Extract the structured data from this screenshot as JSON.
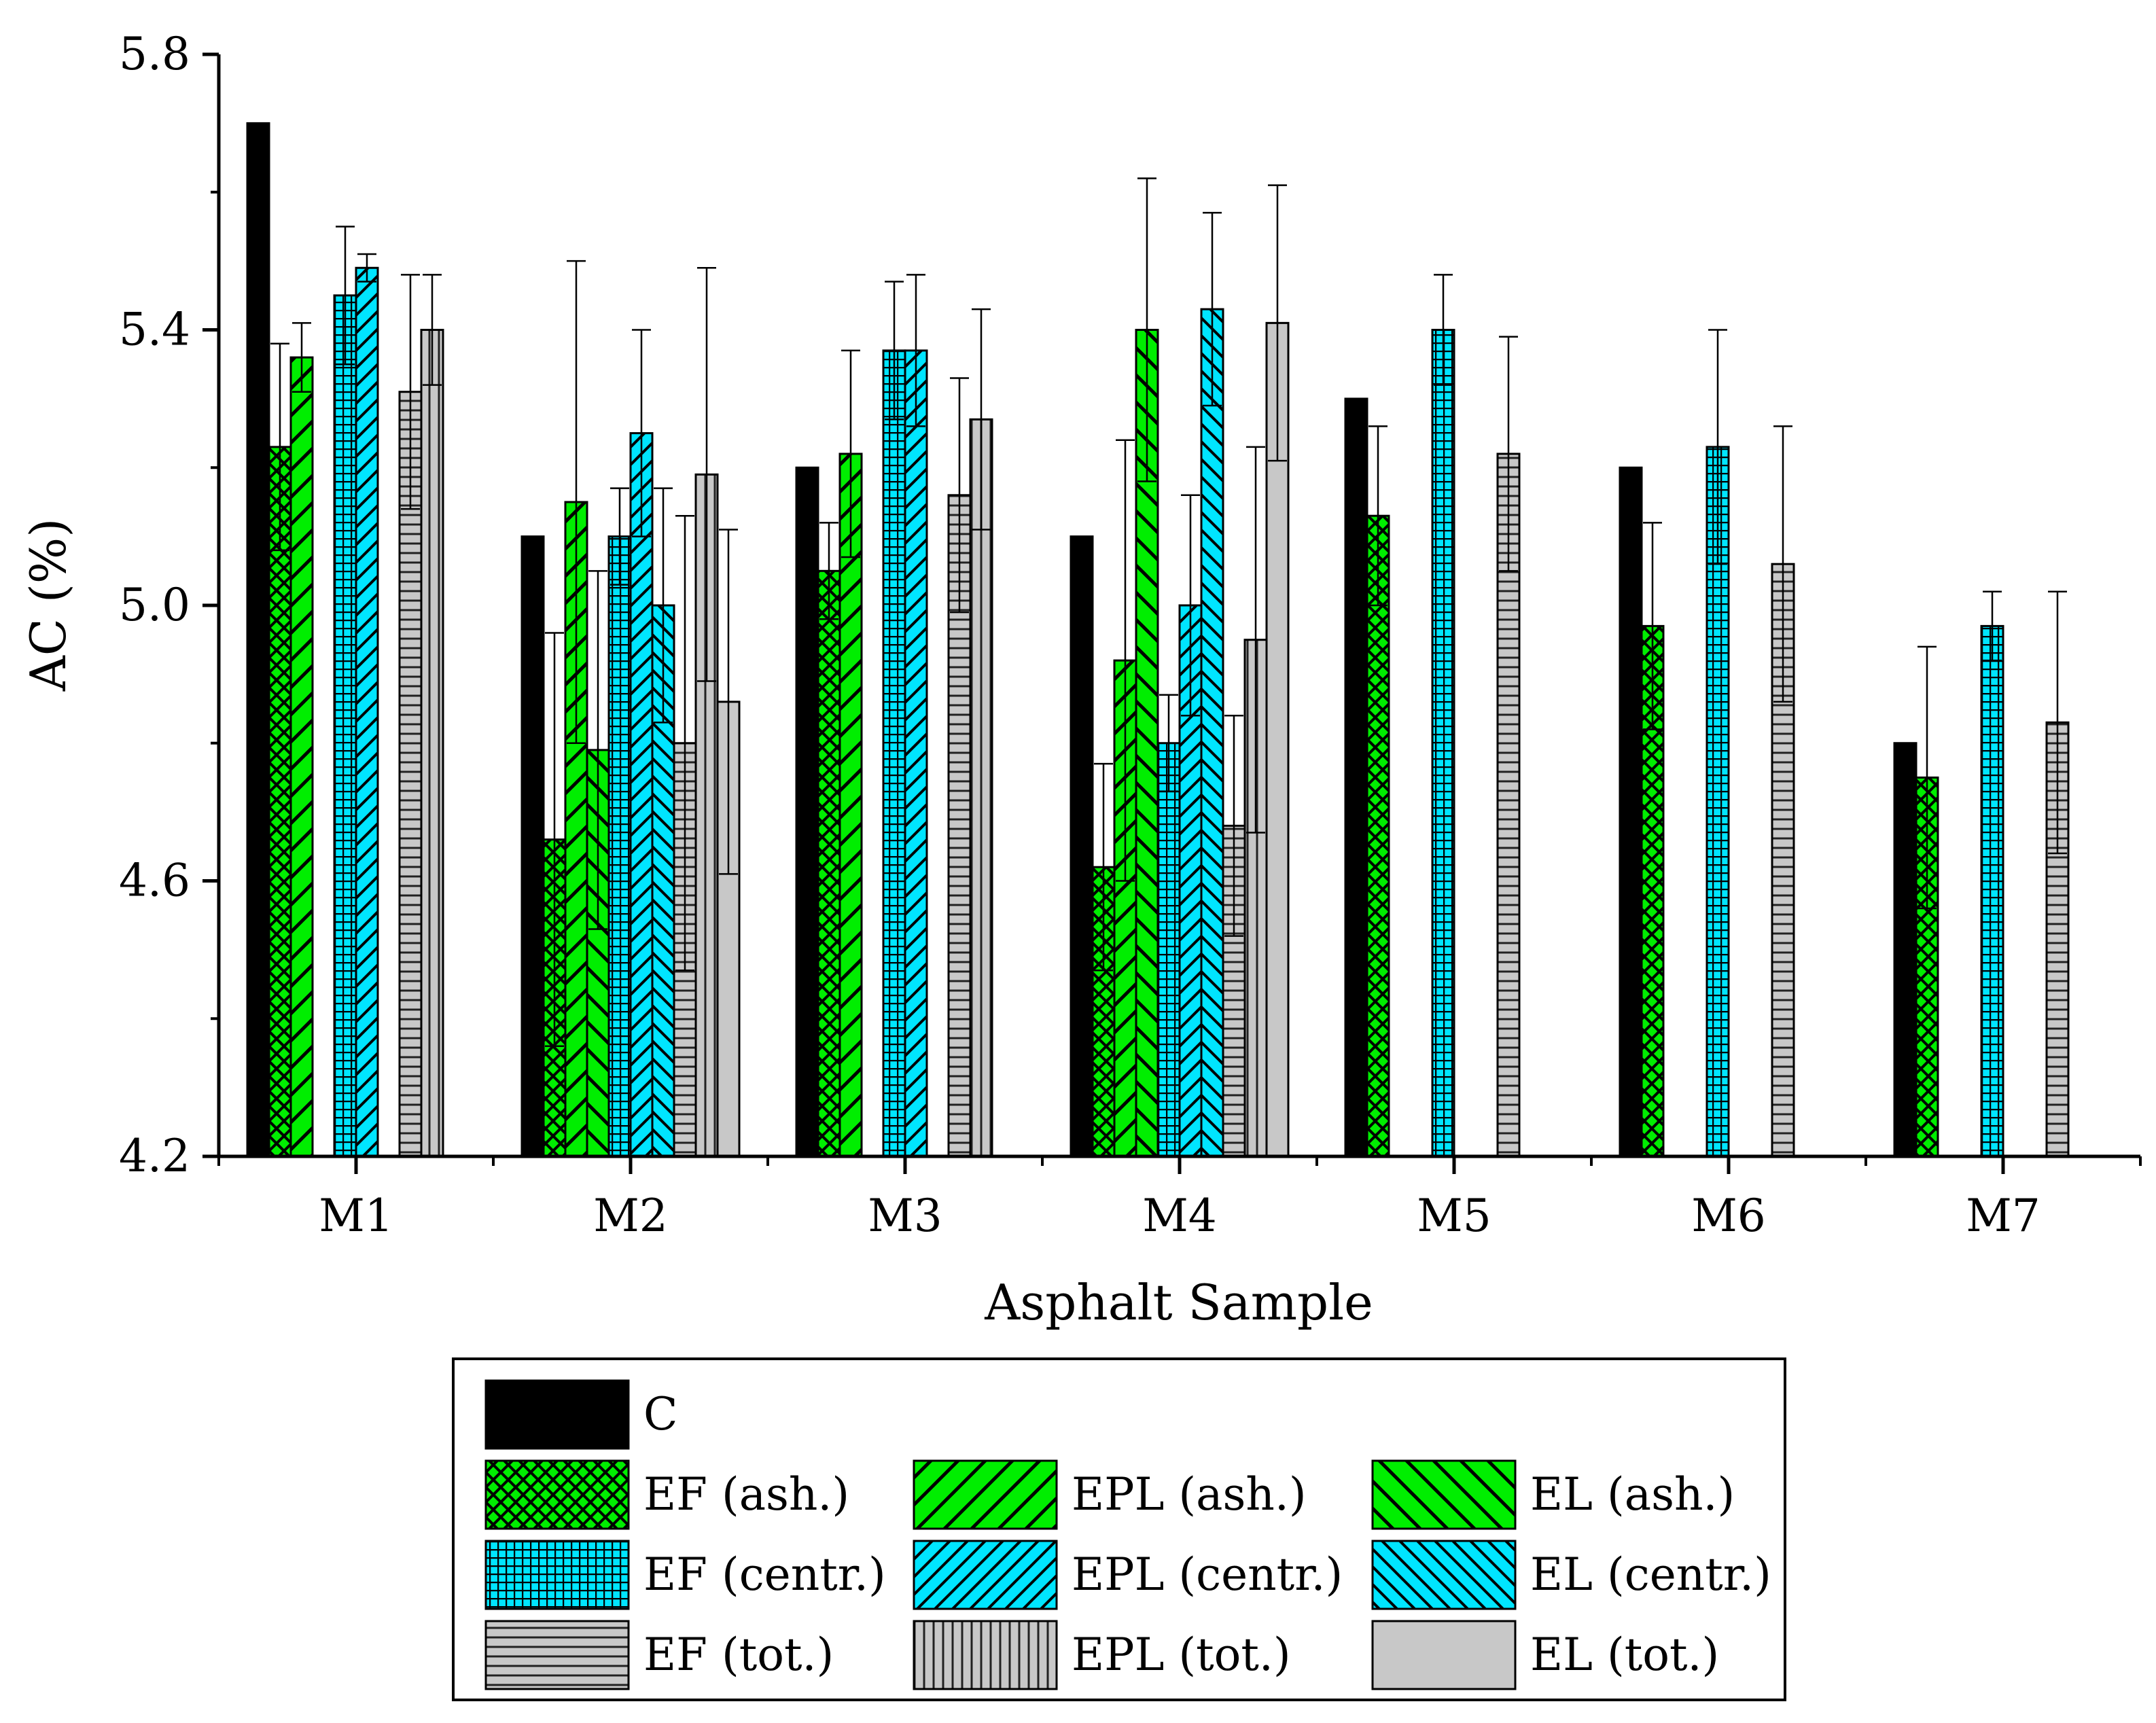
{
  "chart_data": {
    "type": "bar",
    "title": "",
    "xlabel": "Asphalt Sample",
    "ylabel": "AC (%)",
    "ylim": [
      4.2,
      5.8
    ],
    "yticks": [
      "4.2",
      "4.6",
      "5.0",
      "5.4",
      "5.8"
    ],
    "categories": [
      "M1",
      "M2",
      "M3",
      "M4",
      "M5",
      "M6",
      "M7"
    ],
    "legend_position": "bottom",
    "series": [
      {
        "name": "C",
        "pattern": "solid-black",
        "values": [
          5.7,
          5.1,
          5.2,
          5.1,
          5.3,
          5.2,
          4.8
        ],
        "errors": [
          null,
          null,
          null,
          null,
          null,
          null,
          null
        ]
      },
      {
        "name": "EF (ash.)",
        "pattern": "green-crosshatch",
        "values": [
          5.23,
          4.66,
          5.05,
          4.62,
          5.13,
          4.97,
          4.75
        ],
        "errors": [
          0.15,
          0.3,
          0.07,
          0.15,
          0.13,
          0.15,
          0.19
        ]
      },
      {
        "name": "EPL (ash.)",
        "pattern": "green-diag-right",
        "values": [
          5.36,
          5.15,
          5.22,
          4.92,
          null,
          null,
          null
        ],
        "errors": [
          0.05,
          0.35,
          0.15,
          0.32,
          null,
          null,
          null
        ]
      },
      {
        "name": "EL (ash.)",
        "pattern": "green-diag-left",
        "values": [
          null,
          4.79,
          null,
          5.4,
          null,
          null,
          null
        ],
        "errors": [
          null,
          0.26,
          null,
          0.22,
          null,
          null,
          null
        ]
      },
      {
        "name": "EF (centr.)",
        "pattern": "cyan-grid",
        "values": [
          5.45,
          5.1,
          5.37,
          4.8,
          5.4,
          5.23,
          4.97
        ],
        "errors": [
          0.1,
          0.07,
          0.1,
          0.07,
          0.08,
          0.17,
          0.05
        ]
      },
      {
        "name": "EPL (centr.)",
        "pattern": "cyan-diag-right",
        "values": [
          5.49,
          5.25,
          5.37,
          5.0,
          null,
          null,
          null
        ],
        "errors": [
          0.02,
          0.15,
          0.11,
          0.16,
          null,
          null,
          null
        ]
      },
      {
        "name": "EL (centr.)",
        "pattern": "cyan-diag-left",
        "values": [
          null,
          5.0,
          null,
          5.43,
          null,
          null,
          null
        ],
        "errors": [
          null,
          0.17,
          null,
          0.14,
          null,
          null,
          null
        ]
      },
      {
        "name": "EF (tot.)",
        "pattern": "gray-horizontal",
        "values": [
          5.31,
          4.8,
          5.16,
          4.68,
          5.22,
          5.06,
          4.83
        ],
        "errors": [
          0.17,
          0.33,
          0.17,
          0.16,
          0.17,
          0.2,
          0.19
        ]
      },
      {
        "name": "EPL (tot.)",
        "pattern": "gray-vertical",
        "values": [
          5.4,
          5.19,
          5.27,
          4.95,
          null,
          null,
          null
        ],
        "errors": [
          0.08,
          0.3,
          0.16,
          0.28,
          null,
          null,
          null
        ]
      },
      {
        "name": "EL (tot.)",
        "pattern": "gray-solid",
        "values": [
          null,
          4.86,
          null,
          5.41,
          null,
          null,
          null
        ],
        "errors": [
          null,
          0.25,
          null,
          0.2,
          null,
          null,
          null
        ]
      }
    ]
  },
  "colors": {
    "black": "#000000",
    "green": "#00ee00",
    "cyan": "#00e5ff",
    "gray": "#c8c8c8",
    "gray_dark": "#a0a0a0"
  }
}
